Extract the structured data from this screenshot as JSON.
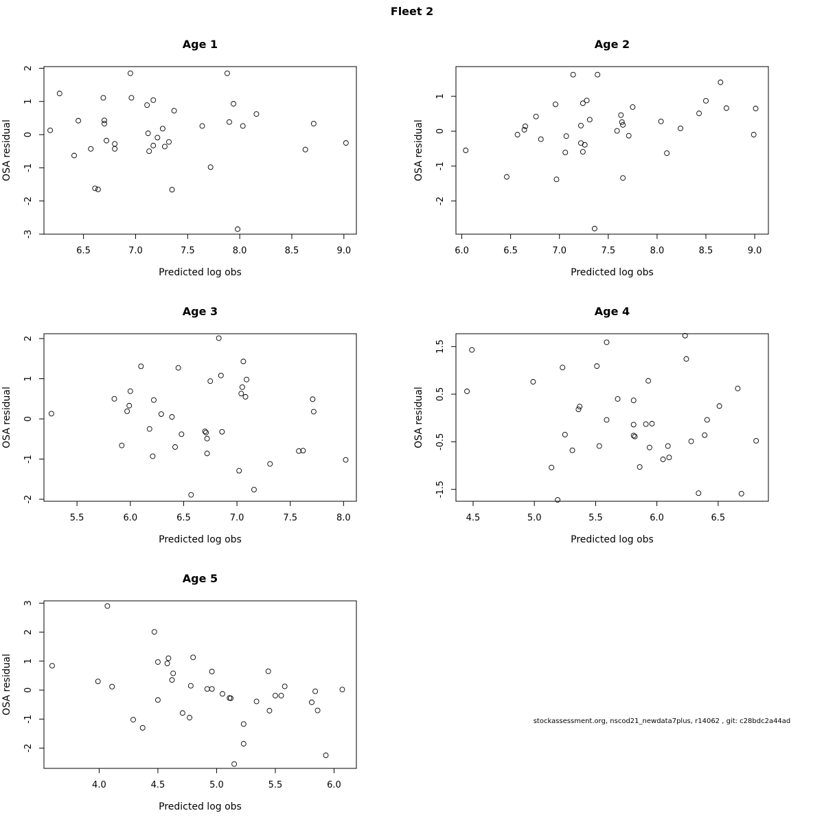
{
  "figure": {
    "title": "Fleet 2",
    "footnote": "stockassessment.org, nscod21_newdata7plus, r14062 , git: c28bdc2a44ad"
  },
  "chart_data": [
    {
      "type": "scatter",
      "title": "Age 1",
      "xlabel": "Predicted log obs",
      "ylabel": "OSA residual",
      "xlim": [
        6.12,
        9.12
      ],
      "ylim": [
        -3.0,
        2.05
      ],
      "xticks": [
        6.5,
        7.0,
        7.5,
        8.0,
        8.5,
        9.0
      ],
      "xtick_labels": [
        "6.5",
        "7.0",
        "7.5",
        "8.0",
        "8.5",
        "9.0"
      ],
      "yticks": [
        -3,
        -2,
        -1,
        0,
        1,
        2
      ],
      "ytick_labels": [
        "-3",
        "-2",
        "-1",
        "0",
        "1",
        "2"
      ],
      "x": [
        6.18,
        6.27,
        6.41,
        6.45,
        6.57,
        6.61,
        6.64,
        6.69,
        6.7,
        6.7,
        6.72,
        6.8,
        6.8,
        6.95,
        6.96,
        7.11,
        7.12,
        7.13,
        7.17,
        7.17,
        7.21,
        7.26,
        7.28,
        7.32,
        7.35,
        7.37,
        7.64,
        7.72,
        7.88,
        7.9,
        7.94,
        7.98,
        8.03,
        8.16,
        8.63,
        8.71,
        9.02
      ],
      "y": [
        0.13,
        1.24,
        -0.63,
        0.42,
        -0.43,
        -1.62,
        -1.65,
        1.11,
        0.33,
        0.43,
        -0.18,
        -0.28,
        -0.43,
        1.85,
        1.11,
        0.89,
        0.04,
        -0.5,
        1.04,
        -0.33,
        -0.09,
        0.18,
        -0.36,
        -0.22,
        -1.66,
        0.72,
        0.26,
        -0.98,
        1.85,
        0.38,
        0.93,
        -2.85,
        0.26,
        0.62,
        -0.45,
        0.33,
        -0.25
      ]
    },
    {
      "type": "scatter",
      "title": "Age 2",
      "xlabel": "Predicted log obs",
      "ylabel": "OSA residual",
      "xlim": [
        5.94,
        9.14
      ],
      "ylim": [
        -2.95,
        1.85
      ],
      "xticks": [
        6.0,
        6.5,
        7.0,
        7.5,
        8.0,
        8.5,
        9.0
      ],
      "xtick_labels": [
        "6.0",
        "6.5",
        "7.0",
        "7.5",
        "8.0",
        "8.5",
        "9.0"
      ],
      "yticks": [
        -2,
        -1,
        0,
        1
      ],
      "ytick_labels": [
        "-2",
        "-1",
        "0",
        "1"
      ],
      "x": [
        6.04,
        6.46,
        6.57,
        6.64,
        6.65,
        6.76,
        6.81,
        6.96,
        6.97,
        7.06,
        7.07,
        7.14,
        7.22,
        7.22,
        7.24,
        7.24,
        7.26,
        7.28,
        7.31,
        7.36,
        7.39,
        7.59,
        7.63,
        7.64,
        7.65,
        7.65,
        7.71,
        7.75,
        8.04,
        8.1,
        8.24,
        8.43,
        8.5,
        8.65,
        8.71,
        8.99,
        9.01
      ],
      "y": [
        -0.55,
        -1.31,
        -0.1,
        0.04,
        0.14,
        0.42,
        -0.23,
        0.77,
        -1.38,
        -0.61,
        -0.14,
        1.62,
        0.16,
        -0.34,
        -0.59,
        0.8,
        -0.39,
        0.88,
        0.33,
        -2.79,
        1.62,
        0.01,
        0.46,
        0.26,
        0.18,
        -1.34,
        -0.13,
        0.69,
        0.28,
        -0.63,
        0.08,
        0.51,
        0.87,
        1.4,
        0.66,
        -0.1,
        0.65
      ]
    },
    {
      "type": "scatter",
      "title": "Age 3",
      "xlabel": "Predicted log obs",
      "ylabel": "OSA residual",
      "xlim": [
        5.19,
        8.12
      ],
      "ylim": [
        -2.05,
        2.12
      ],
      "xticks": [
        5.5,
        6.0,
        6.5,
        7.0,
        7.5,
        8.0
      ],
      "xtick_labels": [
        "5.5",
        "6.0",
        "6.5",
        "7.0",
        "7.5",
        "8.0"
      ],
      "yticks": [
        -2,
        -1,
        0,
        1,
        2
      ],
      "ytick_labels": [
        "-2",
        "-1",
        "0",
        "1",
        "2"
      ],
      "x": [
        5.26,
        5.85,
        5.92,
        5.97,
        5.99,
        6.0,
        6.1,
        6.18,
        6.21,
        6.22,
        6.29,
        6.39,
        6.42,
        6.45,
        6.48,
        6.57,
        6.7,
        6.71,
        6.72,
        6.72,
        6.75,
        6.85,
        6.86,
        6.83,
        7.02,
        7.04,
        7.05,
        7.06,
        7.08,
        7.09,
        7.16,
        7.31,
        7.58,
        7.62,
        7.71,
        7.72,
        8.02
      ],
      "y": [
        0.13,
        0.5,
        -0.66,
        0.19,
        0.33,
        0.69,
        1.31,
        -0.25,
        -0.93,
        0.47,
        0.12,
        0.05,
        -0.7,
        1.27,
        -0.38,
        -1.89,
        -0.31,
        -0.34,
        -0.49,
        -0.86,
        0.94,
        1.08,
        -0.32,
        2.01,
        -1.29,
        0.63,
        0.79,
        1.43,
        0.55,
        0.98,
        -1.76,
        -1.12,
        -0.8,
        -0.79,
        0.49,
        0.18,
        -1.02
      ]
    },
    {
      "type": "scatter",
      "title": "Age 4",
      "xlabel": "Predicted log obs",
      "ylabel": "OSA residual",
      "xlim": [
        4.36,
        6.91
      ],
      "ylim": [
        -1.75,
        1.77
      ],
      "xticks": [
        4.5,
        5.0,
        5.5,
        6.0,
        6.5
      ],
      "xtick_labels": [
        "4.5",
        "5.0",
        "5.5",
        "6.0",
        "6.5"
      ],
      "yticks": [
        -1.5,
        -0.5,
        0.5,
        1.5
      ],
      "ytick_labels": [
        "-1.5",
        "-0.5",
        "0.5",
        "1.5"
      ],
      "x": [
        4.45,
        4.49,
        4.99,
        5.14,
        5.19,
        5.23,
        5.25,
        5.31,
        5.36,
        5.37,
        5.51,
        5.53,
        5.59,
        5.59,
        5.68,
        5.81,
        5.81,
        5.81,
        5.82,
        5.86,
        5.91,
        5.93,
        5.94,
        5.96,
        6.05,
        6.09,
        6.1,
        6.23,
        6.24,
        6.28,
        6.34,
        6.39,
        6.41,
        6.51,
        6.66,
        6.69,
        6.81
      ],
      "y": [
        0.56,
        1.43,
        0.76,
        -1.04,
        -1.72,
        1.06,
        -0.35,
        -0.68,
        0.18,
        0.24,
        1.09,
        -0.59,
        -0.04,
        1.59,
        0.4,
        0.37,
        -0.14,
        -0.37,
        -0.39,
        -1.03,
        -0.13,
        0.78,
        -0.62,
        -0.12,
        -0.87,
        -0.59,
        -0.83,
        1.73,
        1.24,
        -0.49,
        -1.58,
        -0.36,
        -0.04,
        0.25,
        0.62,
        -1.59,
        -0.48
      ]
    },
    {
      "type": "scatter",
      "title": "Age 5",
      "xlabel": "Predicted log obs",
      "ylabel": "OSA residual",
      "xlim": [
        3.53,
        6.19
      ],
      "ylim": [
        -2.7,
        3.08
      ],
      "xticks": [
        4.0,
        4.5,
        5.0,
        5.5,
        6.0
      ],
      "xtick_labels": [
        "4.0",
        "4.5",
        "5.0",
        "5.5",
        "6.0"
      ],
      "yticks": [
        -2,
        -1,
        0,
        1,
        2,
        3
      ],
      "ytick_labels": [
        "-2",
        "-1",
        "0",
        "1",
        "2",
        "3"
      ],
      "x": [
        3.6,
        3.99,
        4.07,
        4.11,
        4.29,
        4.37,
        4.47,
        4.5,
        4.5,
        4.58,
        4.59,
        4.62,
        4.63,
        4.71,
        4.77,
        4.78,
        4.8,
        4.92,
        4.96,
        4.96,
        5.05,
        5.11,
        5.12,
        5.15,
        5.23,
        5.23,
        5.34,
        5.44,
        5.45,
        5.5,
        5.55,
        5.58,
        5.81,
        5.84,
        5.86,
        5.93,
        6.07
      ],
      "y": [
        0.84,
        0.3,
        2.9,
        0.12,
        -1.02,
        -1.3,
        2.01,
        0.97,
        -0.34,
        0.92,
        1.1,
        0.35,
        0.58,
        -0.79,
        -0.95,
        0.15,
        1.13,
        0.04,
        0.04,
        0.64,
        -0.13,
        -0.27,
        -0.28,
        -2.55,
        -1.17,
        -1.85,
        -0.39,
        0.65,
        -0.71,
        -0.19,
        -0.19,
        0.13,
        -0.42,
        -0.04,
        -0.7,
        -2.25,
        0.02
      ]
    }
  ]
}
